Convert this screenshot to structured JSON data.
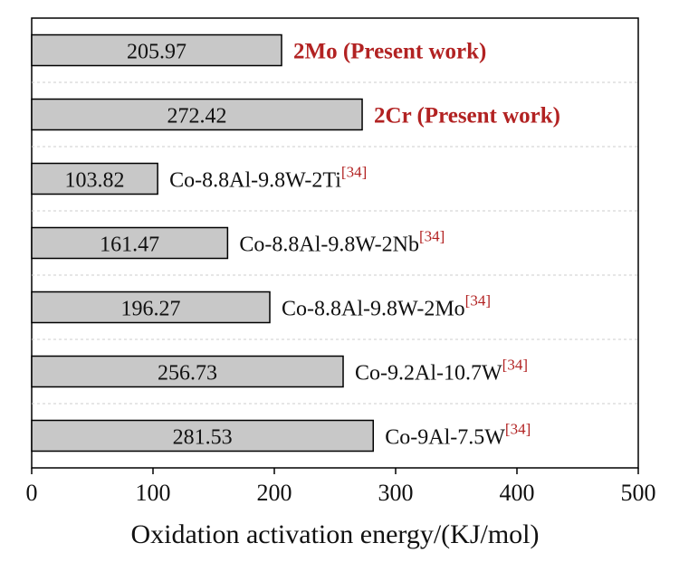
{
  "chart_data": {
    "type": "bar",
    "orientation": "horizontal",
    "xlabel": "Oxidation activation energy/(KJ/mol)",
    "xlim": [
      0,
      500
    ],
    "xticks": [
      0,
      100,
      200,
      300,
      400,
      500
    ],
    "grid": "dashed horizontal separators between bars",
    "bar_color": "#c8c8c8",
    "series": [
      {
        "values": [
          205.97,
          272.42,
          103.82,
          161.47,
          196.27,
          256.73,
          281.53
        ],
        "value_labels": [
          "205.97",
          "272.42",
          "103.82",
          "161.47",
          "196.27",
          "256.73",
          "281.53"
        ],
        "categories": [
          {
            "text": "2Mo (Present work)",
            "ref": "",
            "highlight": true
          },
          {
            "text": "2Cr (Present work)",
            "ref": "",
            "highlight": true
          },
          {
            "text": "Co-8.8Al-9.8W-2Ti",
            "ref": "[34]",
            "highlight": false
          },
          {
            "text": "Co-8.8Al-9.8W-2Nb",
            "ref": "[34]",
            "highlight": false
          },
          {
            "text": "Co-8.8Al-9.8W-2Mo",
            "ref": "[34]",
            "highlight": false
          },
          {
            "text": "Co-9.2Al-10.7W",
            "ref": "[34]",
            "highlight": false
          },
          {
            "text": "Co-9Al-7.5W",
            "ref": "[34]",
            "highlight": false
          }
        ]
      }
    ],
    "colors": {
      "highlight_label": "#b22222",
      "reference": "#b22222",
      "normal_label": "#111111"
    }
  }
}
